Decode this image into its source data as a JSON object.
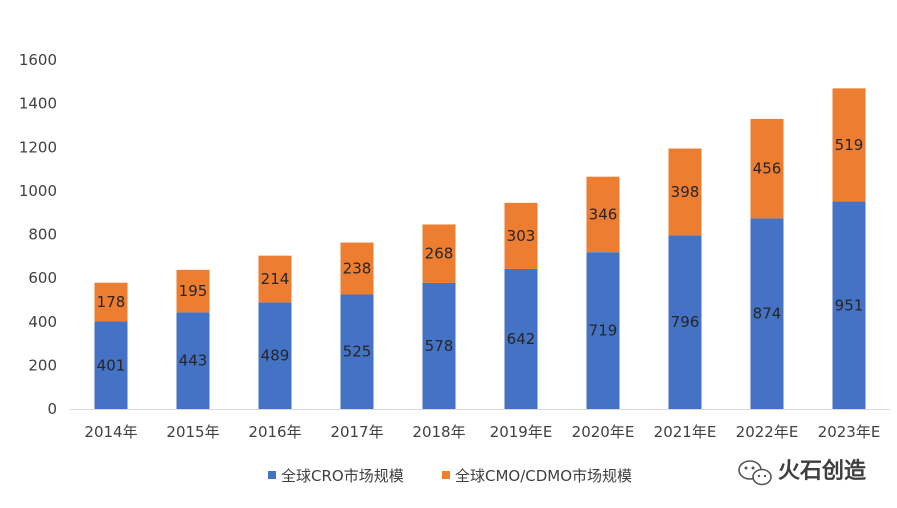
{
  "chart_data": {
    "type": "bar",
    "stacked": true,
    "title": "",
    "xlabel": "",
    "ylabel": "",
    "ylim": [
      0,
      1600
    ],
    "yticks": [
      0,
      200,
      400,
      600,
      800,
      1000,
      1200,
      1400,
      1600
    ],
    "categories": [
      "2014年",
      "2015年",
      "2016年",
      "2017年",
      "2018年",
      "2019年E",
      "2020年E",
      "2021年E",
      "2022年E",
      "2023年E"
    ],
    "series": [
      {
        "name": "全球CRO市场规模",
        "color": "#4472C4",
        "values": [
          401,
          443,
          489,
          525,
          578,
          642,
          719,
          796,
          874,
          951
        ]
      },
      {
        "name": "全球CMO/CDMO市场规模",
        "color": "#ED7D31",
        "values": [
          178,
          195,
          214,
          238,
          268,
          303,
          346,
          398,
          456,
          519
        ]
      }
    ],
    "legend_position": "bottom",
    "grid": false
  },
  "watermark": {
    "text": "火石创造",
    "icon": "wechat-icon"
  }
}
